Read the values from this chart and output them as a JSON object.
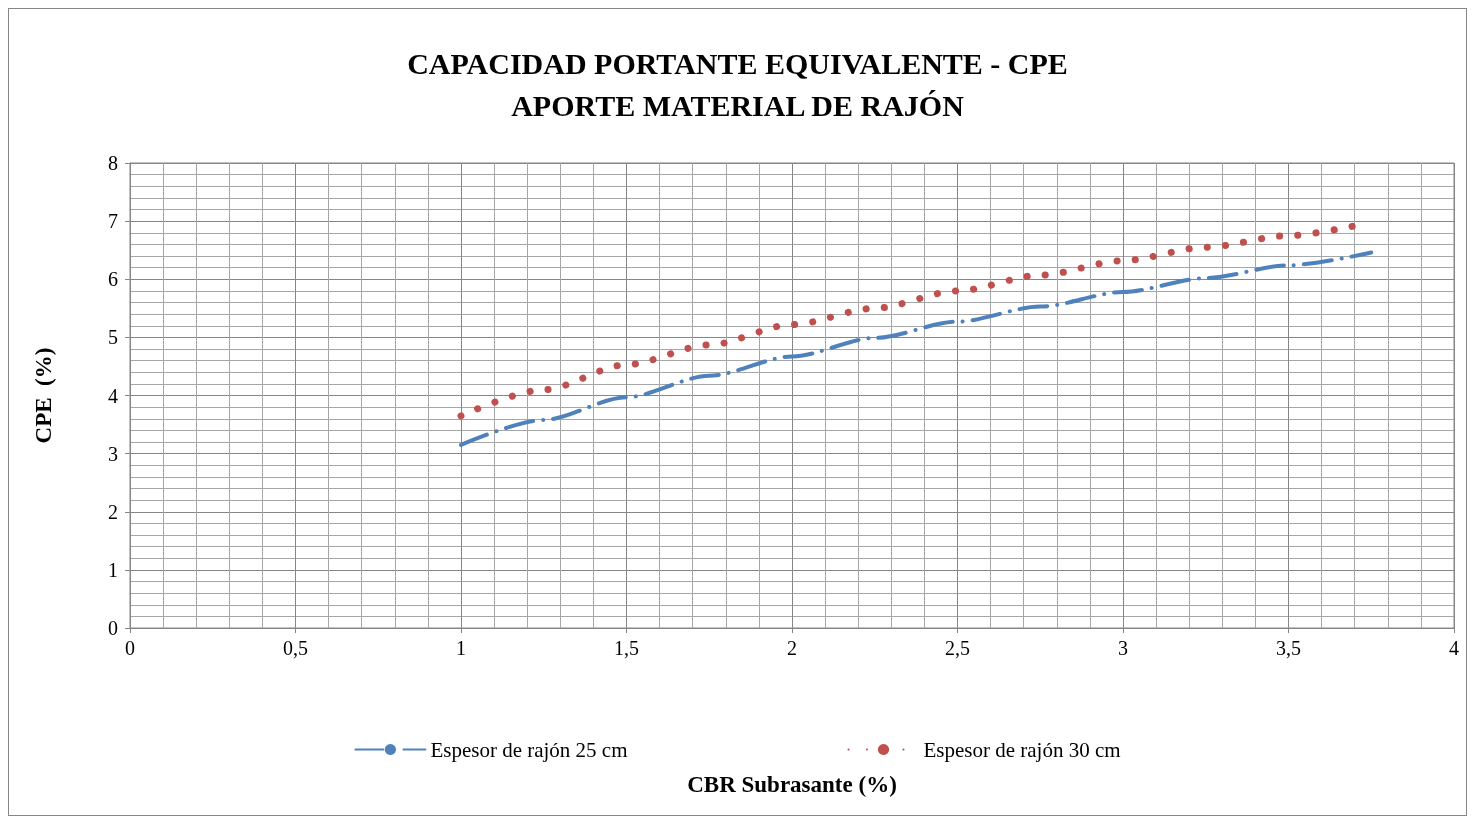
{
  "chart_data": {
    "type": "line",
    "title": "CAPACIDAD PORTANTE EQUIVALENTE - CPE\nAPORTE MATERIAL DE RAJÓN",
    "xlabel": "CBR Subrasante (%)",
    "ylabel": "CPE  (%)",
    "xlim": [
      0,
      4
    ],
    "xticks": [
      0,
      {
        "value": 0.5,
        "label": "0,5"
      },
      1,
      {
        "value": 1.5,
        "label": "1,5"
      },
      2,
      {
        "value": 2.5,
        "label": "2,5"
      },
      3,
      {
        "value": 3.5,
        "label": "3,5"
      },
      4
    ],
    "ylim": [
      0,
      8
    ],
    "yticks": [
      0,
      1,
      2,
      3,
      4,
      5,
      6,
      7,
      8
    ],
    "grid": true,
    "legend": "bottom",
    "marker": "none",
    "series": [
      {
        "name": "Espesor de rajón 25 cm",
        "color": "#4f81bd",
        "line_style": "dashed",
        "x": [
          1,
          1.25,
          1.5,
          1.75,
          2,
          2.25,
          2.5,
          2.75,
          3,
          3.25,
          3.5,
          3.75
        ],
        "values": [
          3.15,
          3.58,
          3.97,
          4.34,
          4.67,
          4.99,
          5.27,
          5.53,
          5.78,
          6.02,
          6.24,
          6.46
        ]
      },
      {
        "name": "Espesor de rajón 30 cm",
        "color": "#c0504d",
        "line_style": "dotted",
        "x": [
          1,
          1.25,
          1.5,
          1.75,
          2,
          2.25,
          2.5,
          2.75,
          3,
          3.25,
          3.5,
          3.7
        ],
        "values": [
          3.65,
          4.1,
          4.53,
          4.87,
          5.22,
          5.5,
          5.8,
          6.07,
          6.32,
          6.55,
          6.75,
          6.92
        ]
      }
    ]
  }
}
